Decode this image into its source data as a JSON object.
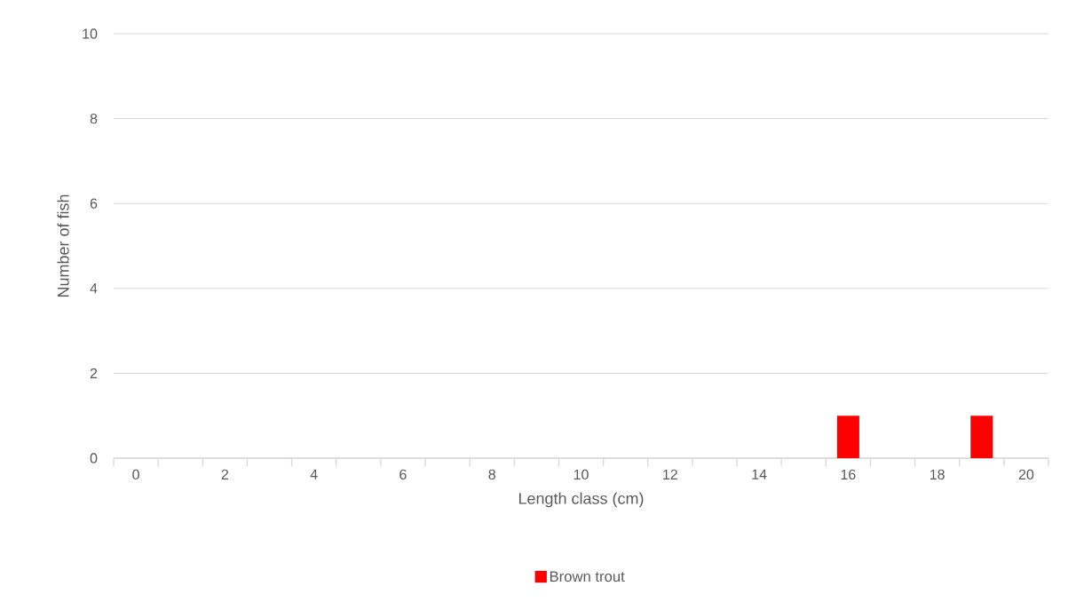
{
  "chart_data": {
    "type": "bar",
    "xlabel": "Length class (cm)",
    "ylabel": "Number of fish",
    "categories": [
      "0",
      null,
      "2",
      null,
      "4",
      null,
      "6",
      null,
      "8",
      null,
      "10",
      null,
      "12",
      null,
      "14",
      null,
      "16",
      null,
      "18",
      null,
      "20"
    ],
    "series": [
      {
        "name": "Brown trout",
        "color": "#ff0000",
        "values": [
          0,
          0,
          0,
          0,
          0,
          0,
          0,
          0,
          0,
          0,
          0,
          0,
          0,
          0,
          0,
          0,
          1,
          0,
          0,
          1,
          0
        ]
      }
    ],
    "ylim": [
      0,
      10
    ],
    "yticks": [
      0,
      2,
      4,
      6,
      8,
      10
    ],
    "grid": "y",
    "legend": "bottom"
  }
}
